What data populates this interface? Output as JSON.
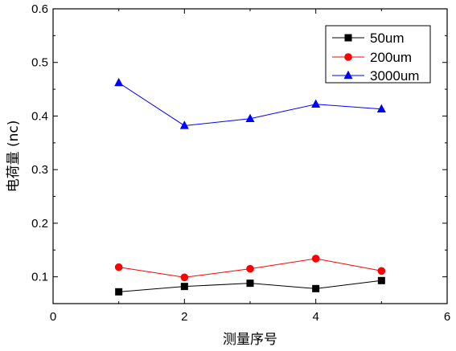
{
  "chart_data": {
    "type": "line",
    "xlabel": "测量序号",
    "ylabel": "电荷量 (nc)",
    "xlim": [
      0,
      6
    ],
    "ylim": [
      0.05,
      0.6
    ],
    "xticks": [
      0,
      2,
      4,
      6
    ],
    "yticks": [
      0.1,
      0.2,
      0.3,
      0.4,
      0.5,
      0.6
    ],
    "x_tick_labels": [
      "0",
      "2",
      "4",
      "6"
    ],
    "y_tick_labels": [
      "0.1",
      "0.2",
      "0.3",
      "0.4",
      "0.5",
      "0.6"
    ],
    "grid": false,
    "legend_position": "top-right",
    "x": [
      1,
      2,
      3,
      4,
      5
    ],
    "series": [
      {
        "name": "50um",
        "values": [
          0.072,
          0.082,
          0.088,
          0.078,
          0.093
        ],
        "color": "#000000",
        "marker": "square"
      },
      {
        "name": "200um",
        "values": [
          0.118,
          0.099,
          0.115,
          0.134,
          0.111
        ],
        "color": "#ff0000",
        "marker": "circle"
      },
      {
        "name": "3000um",
        "values": [
          0.462,
          0.382,
          0.395,
          0.422,
          0.413
        ],
        "color": "#0000ff",
        "marker": "triangle"
      }
    ]
  }
}
